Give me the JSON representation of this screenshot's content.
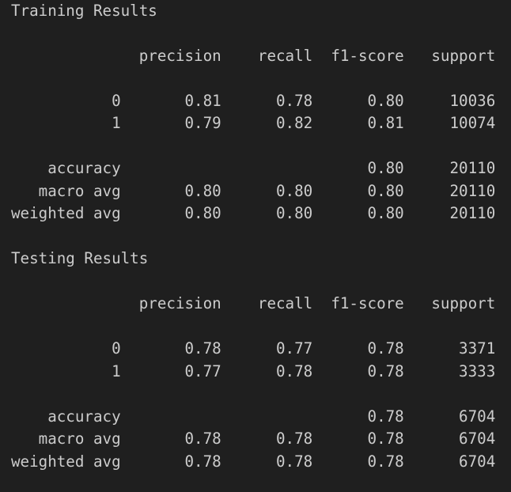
{
  "training": {
    "title": "Training Results",
    "header": [
      "precision",
      "recall",
      "f1-score",
      "support"
    ],
    "rows": [
      {
        "label": "0",
        "precision": "0.81",
        "recall": "0.78",
        "f1": "0.80",
        "support": "10036"
      },
      {
        "label": "1",
        "precision": "0.79",
        "recall": "0.82",
        "f1": "0.81",
        "support": "10074"
      }
    ],
    "accuracy": {
      "label": "accuracy",
      "precision": "",
      "recall": "",
      "f1": "0.80",
      "support": "20110"
    },
    "macro": {
      "label": "macro avg",
      "precision": "0.80",
      "recall": "0.80",
      "f1": "0.80",
      "support": "20110"
    },
    "weighted": {
      "label": "weighted avg",
      "precision": "0.80",
      "recall": "0.80",
      "f1": "0.80",
      "support": "20110"
    }
  },
  "testing": {
    "title": "Testing Results",
    "header": [
      "precision",
      "recall",
      "f1-score",
      "support"
    ],
    "rows": [
      {
        "label": "0",
        "precision": "0.78",
        "recall": "0.77",
        "f1": "0.78",
        "support": "3371"
      },
      {
        "label": "1",
        "precision": "0.77",
        "recall": "0.78",
        "f1": "0.78",
        "support": "3333"
      }
    ],
    "accuracy": {
      "label": "accuracy",
      "precision": "",
      "recall": "",
      "f1": "0.78",
      "support": "6704"
    },
    "macro": {
      "label": "macro avg",
      "precision": "0.78",
      "recall": "0.78",
      "f1": "0.78",
      "support": "6704"
    },
    "weighted": {
      "label": "weighted avg",
      "precision": "0.78",
      "recall": "0.78",
      "f1": "0.78",
      "support": "6704"
    }
  }
}
